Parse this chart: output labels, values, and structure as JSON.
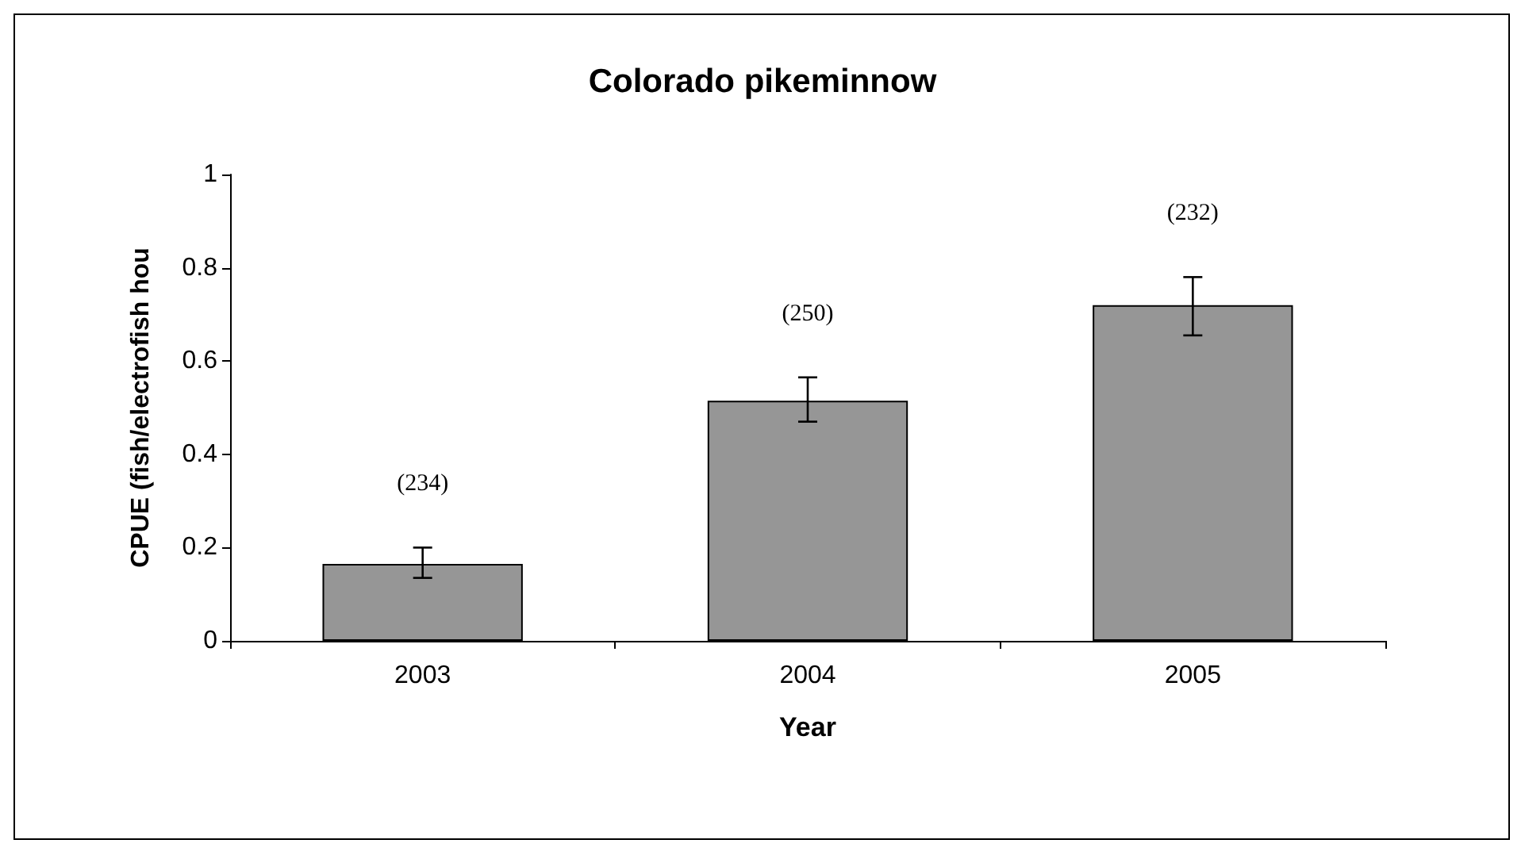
{
  "chart_data": {
    "type": "bar",
    "title": "Colorado pikeminnow",
    "xlabel": "Year",
    "ylabel": "CPUE (fish/electrofish hou",
    "categories": [
      "2003",
      "2004",
      "2005"
    ],
    "values": [
      0.165,
      0.515,
      0.72
    ],
    "color": "#969696",
    "errors": [
      [
        0.135,
        0.2
      ],
      [
        0.47,
        0.565
      ],
      [
        0.655,
        0.78
      ]
    ],
    "ylim": [
      0,
      1
    ],
    "yticks": [
      0,
      0.2,
      0.4,
      0.6,
      0.8,
      1
    ],
    "grid": false,
    "annotations": [
      "(234)",
      "(250)",
      "(232)"
    ]
  }
}
